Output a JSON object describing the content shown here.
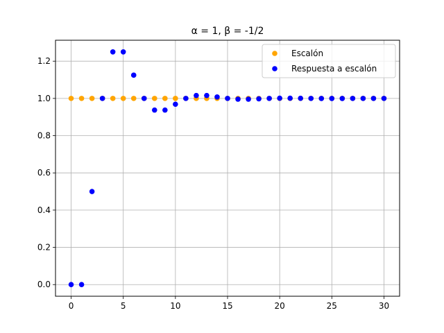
{
  "chart_data": {
    "type": "scatter",
    "title": "α = 1, β = -1/2",
    "xlabel": "",
    "ylabel": "",
    "xlim": [
      -1.5,
      31.5
    ],
    "ylim": [
      -0.0625,
      1.3125
    ],
    "xticks": [
      0,
      5,
      10,
      15,
      20,
      25,
      30
    ],
    "yticks": [
      0.0,
      0.2,
      0.4,
      0.6,
      0.8,
      1.0,
      1.2
    ],
    "grid": true,
    "legend_position": "top-right",
    "x": [
      0,
      1,
      2,
      3,
      4,
      5,
      6,
      7,
      8,
      9,
      10,
      11,
      12,
      13,
      14,
      15,
      16,
      17,
      18,
      19,
      20,
      21,
      22,
      23,
      24,
      25,
      26,
      27,
      28,
      29,
      30
    ],
    "series": [
      {
        "name": "Escalón",
        "color": "#ffa500",
        "values": [
          1,
          1,
          1,
          1,
          1,
          1,
          1,
          1,
          1,
          1,
          1,
          1,
          1,
          1,
          1,
          1,
          1,
          1,
          1,
          1,
          1,
          1,
          1,
          1,
          1,
          1,
          1,
          1,
          1,
          1,
          1
        ]
      },
      {
        "name": "Respuesta a escalón",
        "color": "#0000ff",
        "values": [
          0,
          0,
          0.5,
          1.0,
          1.25,
          1.25,
          1.125,
          1.0,
          0.9375,
          0.9375,
          0.96875,
          1.0,
          1.015625,
          1.015625,
          1.0078,
          1.0,
          0.9961,
          0.9961,
          0.998,
          1.0,
          1.001,
          1.001,
          1.0005,
          1.0,
          0.9998,
          0.9998,
          0.9999,
          1.0,
          1.0,
          1.0,
          1.0
        ]
      }
    ]
  }
}
